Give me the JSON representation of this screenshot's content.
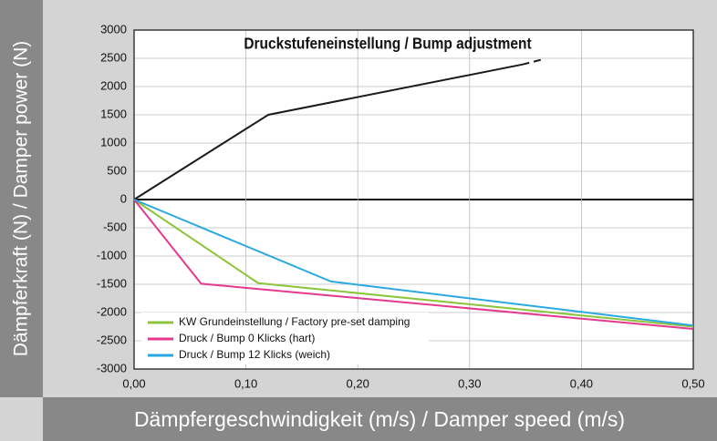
{
  "chart_data": {
    "type": "line",
    "title": "Druckstufeneinstellung / Bump adjustment",
    "x_label": "Dämpfergeschwindigkeit (m/s) / Damper speed (m/s)",
    "y_label": "Dämpferkraft (N) / Damper power (N)",
    "xlim": [
      0,
      0.5
    ],
    "ylim": [
      -3000,
      3000
    ],
    "xticks": [
      {
        "value": 0,
        "label": "0,00"
      },
      {
        "value": 0.1,
        "label": "0,10"
      },
      {
        "value": 0.2,
        "label": "0,20"
      },
      {
        "value": 0.3,
        "label": "0,30"
      },
      {
        "value": 0.4,
        "label": "0,40"
      },
      {
        "value": 0.5,
        "label": "0,50"
      }
    ],
    "yticks": [
      -3000,
      -2500,
      -2000,
      -1500,
      -1000,
      -500,
      0,
      500,
      1000,
      1500,
      2000,
      2500,
      3000
    ],
    "grid": true,
    "legend": "bottom-left",
    "series": [
      {
        "color": "#1a1a1a",
        "dashed": false,
        "x": [
          0,
          0.12,
          0.347
        ],
        "values": [
          0,
          1500,
          2390
        ]
      },
      {
        "color": "#1a1a1a",
        "dashed": true,
        "x": [
          0.347,
          0.367
        ],
        "values": [
          2390,
          2490
        ]
      },
      {
        "name": "KW Grundeinstellung / Factory pre-set damping",
        "color": "#8cc43c",
        "dashed": false,
        "x": [
          0,
          0.111,
          0.5
        ],
        "values": [
          0,
          -1480,
          -2250
        ]
      },
      {
        "name": "Druck / Bump 0 Klicks (hart)",
        "color": "#e5388f",
        "dashed": false,
        "x": [
          0,
          0.06,
          0.5
        ],
        "values": [
          0,
          -1490,
          -2290
        ]
      },
      {
        "name": "Druck / Bump 12 Klicks (weich)",
        "color": "#2aa9e0",
        "dashed": false,
        "x": [
          0,
          0.176,
          0.5
        ],
        "values": [
          0,
          -1450,
          -2230
        ]
      }
    ]
  }
}
